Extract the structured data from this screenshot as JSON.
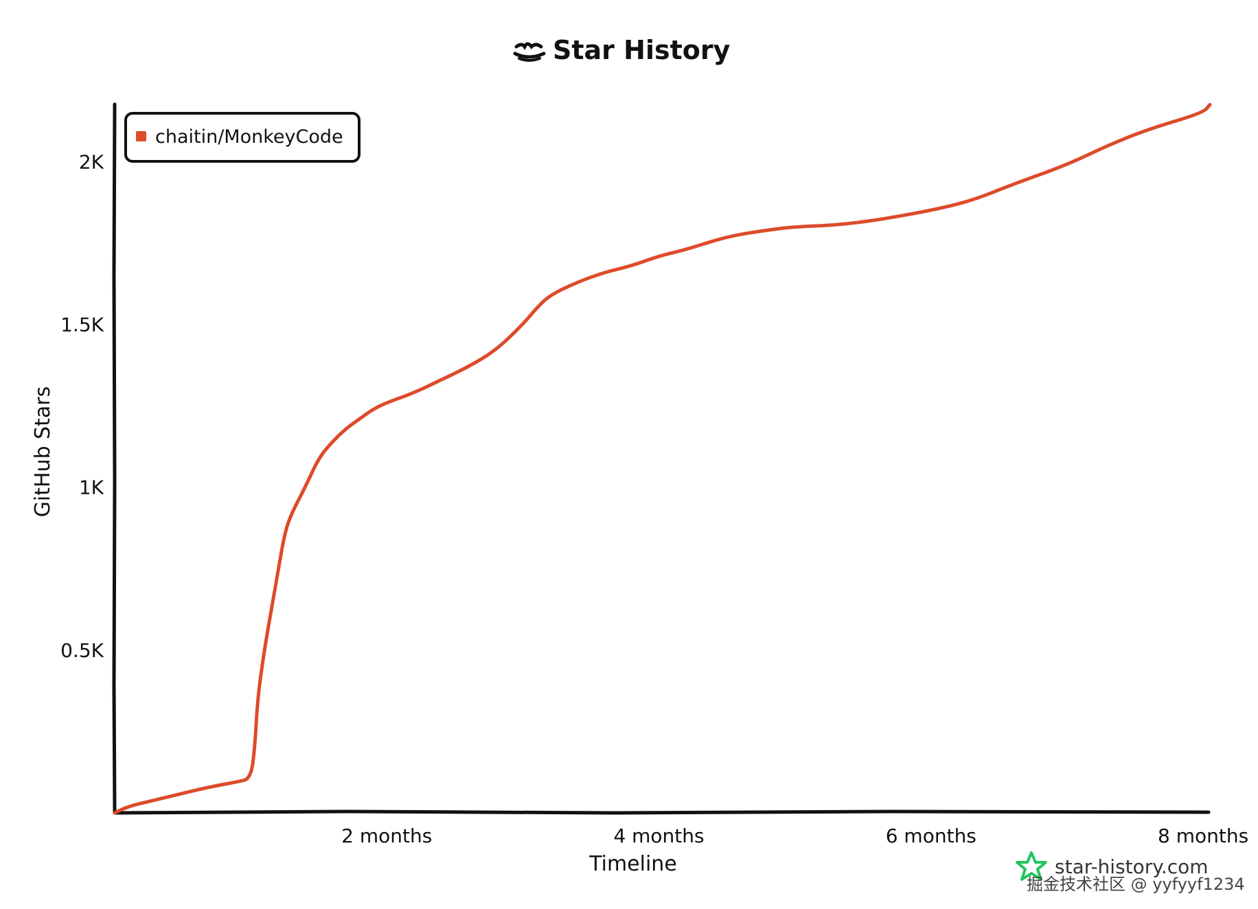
{
  "watermark": {
    "brand": "star-history.com",
    "credit": "掘金技术社区 @ yyfyyf1234"
  },
  "colors": {
    "series": "#dd4b2a",
    "axis": "#111111",
    "brand_icon": "#22c55e"
  },
  "chart_data": {
    "type": "line",
    "title": "Star History",
    "xlabel": "Timeline",
    "ylabel": "GitHub Stars",
    "xlim": [
      0,
      8.05
    ],
    "ylim": [
      0,
      2180
    ],
    "x_ticks": [
      {
        "value": 2,
        "label": "2 months"
      },
      {
        "value": 4,
        "label": "4 months"
      },
      {
        "value": 6,
        "label": "6 months"
      },
      {
        "value": 8,
        "label": "8 months"
      }
    ],
    "y_ticks": [
      {
        "value": 500,
        "label": "0.5K"
      },
      {
        "value": 1000,
        "label": "1K"
      },
      {
        "value": 1500,
        "label": "1.5K"
      },
      {
        "value": 2000,
        "label": "2K"
      }
    ],
    "legend_position": "top-left",
    "grid": false,
    "series": [
      {
        "name": "chaitin/MonkeyCode",
        "x": [
          0,
          0.1,
          0.3,
          0.5,
          0.7,
          0.9,
          1.0,
          1.03,
          1.05,
          1.1,
          1.15,
          1.2,
          1.25,
          1.3,
          1.4,
          1.5,
          1.6,
          1.7,
          1.8,
          1.9,
          2.0,
          2.2,
          2.4,
          2.6,
          2.8,
          3.0,
          3.1,
          3.2,
          3.4,
          3.6,
          3.8,
          4.0,
          4.2,
          4.5,
          4.8,
          5.0,
          5.3,
          5.6,
          6.0,
          6.3,
          6.6,
          7.0,
          7.3,
          7.6,
          8.0,
          8.05
        ],
        "y": [
          0,
          20,
          40,
          60,
          80,
          95,
          105,
          200,
          350,
          500,
          620,
          740,
          860,
          920,
          1000,
          1090,
          1140,
          1180,
          1210,
          1240,
          1260,
          1290,
          1330,
          1370,
          1420,
          1500,
          1550,
          1590,
          1630,
          1660,
          1680,
          1710,
          1730,
          1770,
          1790,
          1800,
          1805,
          1820,
          1850,
          1880,
          1930,
          1990,
          2050,
          2100,
          2150,
          2175
        ]
      }
    ]
  }
}
